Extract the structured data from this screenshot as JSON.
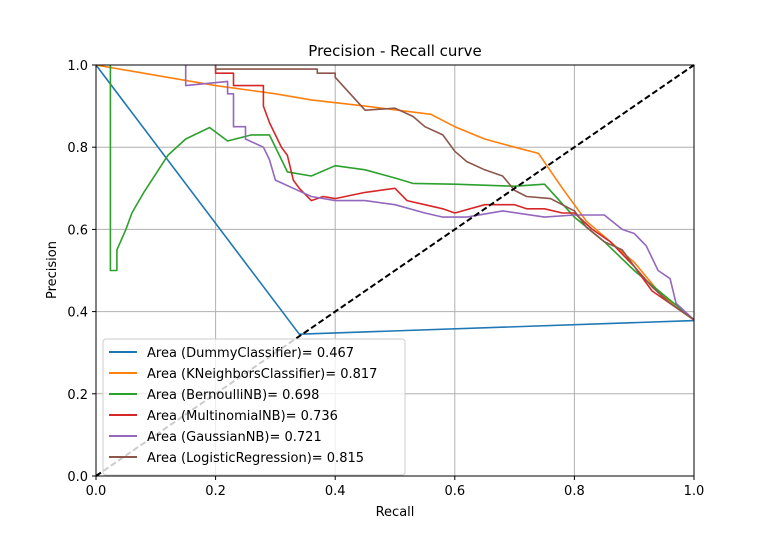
{
  "chart_data": {
    "type": "line",
    "title": "Precision - Recall curve",
    "xlabel": "Recall",
    "ylabel": "Precision",
    "xlim": [
      0.0,
      1.0
    ],
    "ylim": [
      0.0,
      1.0
    ],
    "xticks": [
      "0.0",
      "0.2",
      "0.4",
      "0.6",
      "0.8",
      "1.0"
    ],
    "yticks": [
      "0.0",
      "0.2",
      "0.4",
      "0.6",
      "0.8",
      "1.0"
    ],
    "grid": true,
    "legend_position": "lower-left",
    "reference_line": {
      "x": [
        0,
        1
      ],
      "y": [
        0,
        1
      ],
      "color": "#000000",
      "style": "dashed"
    },
    "series": [
      {
        "name": "Area (DummyClassifier)= 0.467",
        "color": "#1f77b4",
        "x": [
          0.0,
          0.34,
          1.0
        ],
        "y": [
          1.0,
          0.345,
          0.378
        ]
      },
      {
        "name": "Area (KNeighborsClassifier)= 0.817",
        "color": "#ff7f0e",
        "x": [
          0.0,
          0.1,
          0.2,
          0.3,
          0.36,
          0.45,
          0.56,
          0.6,
          0.65,
          0.7,
          0.74,
          0.78,
          0.82,
          0.86,
          0.9,
          0.94,
          0.97,
          1.0
        ],
        "y": [
          1.0,
          0.975,
          0.95,
          0.93,
          0.915,
          0.9,
          0.88,
          0.85,
          0.82,
          0.8,
          0.785,
          0.7,
          0.62,
          0.57,
          0.52,
          0.45,
          0.41,
          0.38
        ]
      },
      {
        "name": "Area (BernoulliNB)= 0.698",
        "color": "#2ca02c",
        "x": [
          0.024,
          0.024,
          0.026,
          0.026,
          0.035,
          0.035,
          0.05,
          0.06,
          0.08,
          0.12,
          0.15,
          0.19,
          0.22,
          0.26,
          0.29,
          0.32,
          0.36,
          0.4,
          0.45,
          0.5,
          0.53,
          0.6,
          0.7,
          0.75,
          0.8,
          0.85,
          0.9,
          0.95,
          1.0
        ],
        "y": [
          1.0,
          0.5,
          0.5,
          0.5,
          0.5,
          0.55,
          0.6,
          0.64,
          0.69,
          0.78,
          0.82,
          0.848,
          0.815,
          0.83,
          0.83,
          0.74,
          0.73,
          0.755,
          0.745,
          0.725,
          0.712,
          0.71,
          0.705,
          0.71,
          0.63,
          0.57,
          0.5,
          0.44,
          0.38
        ]
      },
      {
        "name": "Area (MultinomialNB)= 0.736",
        "color": "#d62728",
        "x": [
          0.2,
          0.2,
          0.23,
          0.23,
          0.28,
          0.28,
          0.29,
          0.3,
          0.31,
          0.32,
          0.33,
          0.34,
          0.36,
          0.38,
          0.4,
          0.45,
          0.5,
          0.52,
          0.55,
          0.58,
          0.6,
          0.65,
          0.7,
          0.72,
          0.75,
          0.78,
          0.8,
          0.83,
          0.86,
          0.9,
          0.93,
          0.96,
          1.0
        ],
        "y": [
          1.0,
          0.98,
          0.98,
          0.95,
          0.95,
          0.9,
          0.86,
          0.83,
          0.8,
          0.78,
          0.72,
          0.7,
          0.67,
          0.68,
          0.675,
          0.69,
          0.7,
          0.67,
          0.66,
          0.65,
          0.64,
          0.66,
          0.66,
          0.65,
          0.65,
          0.64,
          0.64,
          0.6,
          0.57,
          0.51,
          0.45,
          0.42,
          0.38
        ]
      },
      {
        "name": "Area (GaussianNB)= 0.721",
        "color": "#9467bd",
        "x": [
          0.15,
          0.15,
          0.22,
          0.22,
          0.23,
          0.23,
          0.25,
          0.25,
          0.28,
          0.29,
          0.3,
          0.33,
          0.36,
          0.4,
          0.45,
          0.5,
          0.55,
          0.58,
          0.62,
          0.68,
          0.75,
          0.8,
          0.85,
          0.88,
          0.9,
          0.92,
          0.94,
          0.96,
          0.97,
          1.0
        ],
        "y": [
          1.0,
          0.95,
          0.96,
          0.93,
          0.93,
          0.85,
          0.85,
          0.82,
          0.8,
          0.77,
          0.72,
          0.7,
          0.68,
          0.67,
          0.67,
          0.66,
          0.64,
          0.63,
          0.63,
          0.645,
          0.63,
          0.635,
          0.635,
          0.6,
          0.59,
          0.56,
          0.5,
          0.48,
          0.42,
          0.38
        ]
      },
      {
        "name": "Area (LogisticRegression)= 0.815",
        "color": "#8c564b",
        "x": [
          0.2,
          0.2,
          0.37,
          0.37,
          0.4,
          0.4,
          0.45,
          0.5,
          0.53,
          0.55,
          0.58,
          0.6,
          0.62,
          0.65,
          0.68,
          0.7,
          0.72,
          0.76,
          0.8,
          0.82,
          0.85,
          0.88,
          0.9,
          0.93,
          0.96,
          0.98,
          1.0
        ],
        "y": [
          1.0,
          0.99,
          0.99,
          0.98,
          0.98,
          0.97,
          0.89,
          0.895,
          0.875,
          0.85,
          0.83,
          0.79,
          0.765,
          0.745,
          0.73,
          0.695,
          0.68,
          0.675,
          0.645,
          0.605,
          0.57,
          0.55,
          0.51,
          0.46,
          0.42,
          0.4,
          0.38
        ]
      }
    ]
  }
}
